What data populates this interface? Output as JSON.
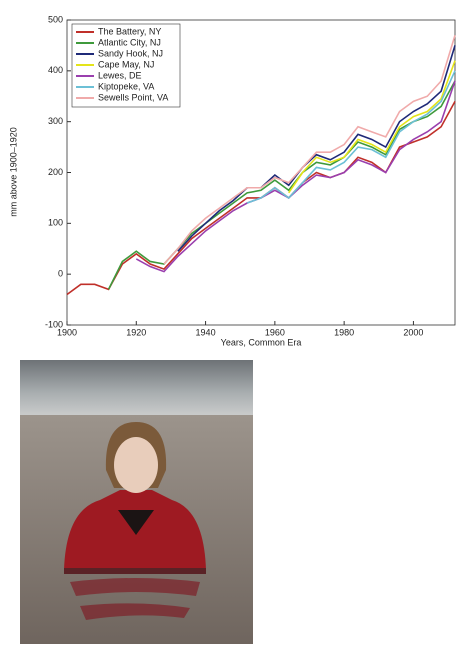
{
  "chart_data": {
    "type": "line",
    "ylabel": "mm above 1900–1920",
    "xlabel": "Years, Common Era",
    "x": [
      1900,
      1904,
      1908,
      1912,
      1916,
      1920,
      1924,
      1928,
      1932,
      1936,
      1940,
      1944,
      1948,
      1952,
      1956,
      1960,
      1964,
      1968,
      1972,
      1976,
      1980,
      1984,
      1988,
      1992,
      1996,
      2000,
      2004,
      2008,
      2012
    ],
    "xlim": [
      1900,
      2012
    ],
    "xticks": [
      1900,
      1920,
      1940,
      1960,
      1980,
      2000
    ],
    "ylim": [
      -100,
      500
    ],
    "yticks": [
      -100,
      0,
      100,
      200,
      300,
      400,
      500
    ],
    "legend": "upper-left",
    "series": [
      {
        "name": "The Battery, NY",
        "color": "#c0302a",
        "values": [
          -40,
          -20,
          -20,
          -30,
          20,
          40,
          20,
          10,
          40,
          70,
          90,
          110,
          130,
          150,
          150,
          170,
          150,
          180,
          200,
          190,
          200,
          230,
          220,
          200,
          250,
          260,
          270,
          290,
          340
        ]
      },
      {
        "name": "Atlantic City, NJ",
        "color": "#3f9a3c",
        "values": [
          null,
          null,
          null,
          -30,
          25,
          45,
          25,
          20,
          50,
          80,
          100,
          120,
          140,
          160,
          165,
          185,
          165,
          200,
          220,
          215,
          230,
          260,
          250,
          235,
          285,
          300,
          310,
          330,
          380
        ]
      },
      {
        "name": "Sandy Hook, NJ",
        "color": "#1f2a78",
        "values": [
          null,
          null,
          null,
          null,
          null,
          null,
          null,
          null,
          45,
          75,
          100,
          125,
          145,
          170,
          170,
          195,
          175,
          210,
          235,
          225,
          240,
          275,
          265,
          250,
          300,
          320,
          335,
          360,
          450
        ]
      },
      {
        "name": "Cape May, NJ",
        "color": "#e4e41a",
        "values": [
          null,
          null,
          null,
          null,
          null,
          null,
          null,
          null,
          null,
          null,
          null,
          null,
          null,
          null,
          null,
          null,
          160,
          200,
          230,
          220,
          230,
          265,
          255,
          240,
          290,
          310,
          320,
          345,
          420
        ]
      },
      {
        "name": "Lewes, DE",
        "color": "#9a3fae",
        "values": [
          null,
          null,
          null,
          null,
          null,
          30,
          15,
          5,
          35,
          60,
          85,
          105,
          125,
          140,
          150,
          165,
          150,
          175,
          195,
          190,
          200,
          225,
          215,
          200,
          245,
          265,
          280,
          300,
          380
        ]
      },
      {
        "name": "Kiptopeke, VA",
        "color": "#6cc0d6",
        "values": [
          null,
          null,
          null,
          null,
          null,
          null,
          null,
          null,
          null,
          null,
          null,
          null,
          null,
          140,
          150,
          170,
          150,
          180,
          210,
          205,
          220,
          250,
          245,
          230,
          280,
          300,
          315,
          340,
          400
        ]
      },
      {
        "name": "Sewells Point, VA",
        "color": "#f0aaaa",
        "values": [
          null,
          null,
          null,
          null,
          null,
          null,
          null,
          20,
          50,
          85,
          110,
          130,
          150,
          170,
          170,
          190,
          180,
          210,
          240,
          240,
          255,
          290,
          280,
          270,
          320,
          340,
          350,
          380,
          470
        ]
      }
    ]
  }
}
